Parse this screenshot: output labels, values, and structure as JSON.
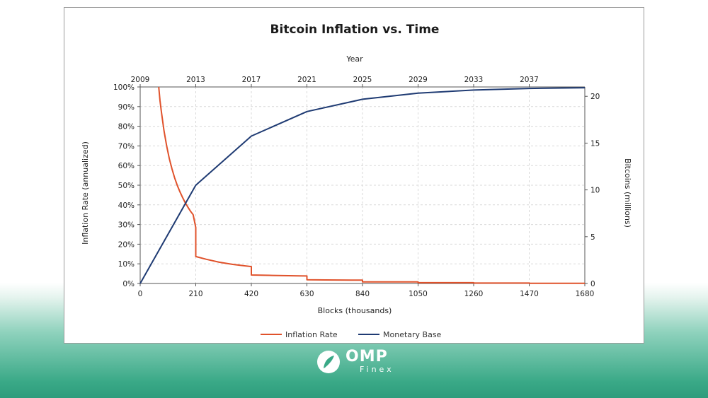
{
  "chart_data": {
    "type": "line",
    "title": "Bitcoin Inflation vs. Time",
    "xlabel": "Blocks (thousands)",
    "x2label": "Year",
    "ylabel": "Inflation Rate (annualized)",
    "y2label": "Bitcoins (millions)",
    "xlim": [
      0,
      1680
    ],
    "ylim": [
      0,
      100
    ],
    "y2lim": [
      0,
      21
    ],
    "x_ticks": [
      "0",
      "210",
      "420",
      "630",
      "840",
      "1050",
      "1260",
      "1470",
      "1680"
    ],
    "year_ticks": [
      "2009",
      "2013",
      "2017",
      "2021",
      "2025",
      "2029",
      "2033",
      "2037"
    ],
    "y_ticks": [
      "0%",
      "10%",
      "20%",
      "30%",
      "40%",
      "50%",
      "60%",
      "70%",
      "80%",
      "90%",
      "100%"
    ],
    "y2_ticks": [
      "0",
      "5",
      "10",
      "15",
      "20"
    ],
    "grid": true,
    "legend_position": "bottom-center",
    "series": [
      {
        "name": "Inflation Rate",
        "axis": "left",
        "color": "#e0522b",
        "x": [
          70,
          75,
          80,
          90,
          100,
          110,
          120,
          130,
          140,
          150,
          160,
          170,
          180,
          190,
          200,
          210,
          210,
          250,
          300,
          350,
          400,
          420,
          420,
          500,
          600,
          630,
          630,
          700,
          800,
          840,
          840,
          1050,
          1050,
          1260,
          1260,
          1470,
          1470,
          1680
        ],
        "values": [
          100,
          93,
          87.5,
          77.8,
          70,
          63.6,
          58.3,
          53.8,
          50,
          46.7,
          43.8,
          41.2,
          38.9,
          36.8,
          35,
          28.5,
          13.7,
          12.3,
          10.8,
          9.7,
          8.9,
          8.6,
          4.3,
          4.1,
          3.9,
          3.8,
          1.9,
          1.8,
          1.7,
          1.7,
          0.8,
          0.8,
          0.4,
          0.4,
          0.2,
          0.2,
          0.1,
          0.1
        ]
      },
      {
        "name": "Monetary Base",
        "axis": "right",
        "color": "#1f3b73",
        "x": [
          0,
          210,
          420,
          630,
          840,
          1050,
          1260,
          1470,
          1680
        ],
        "values": [
          0,
          10.5,
          15.75,
          18.375,
          19.6875,
          20.34,
          20.67,
          20.84,
          20.92
        ]
      }
    ]
  },
  "brand": {
    "name": "OMP",
    "sub": "Finex"
  }
}
